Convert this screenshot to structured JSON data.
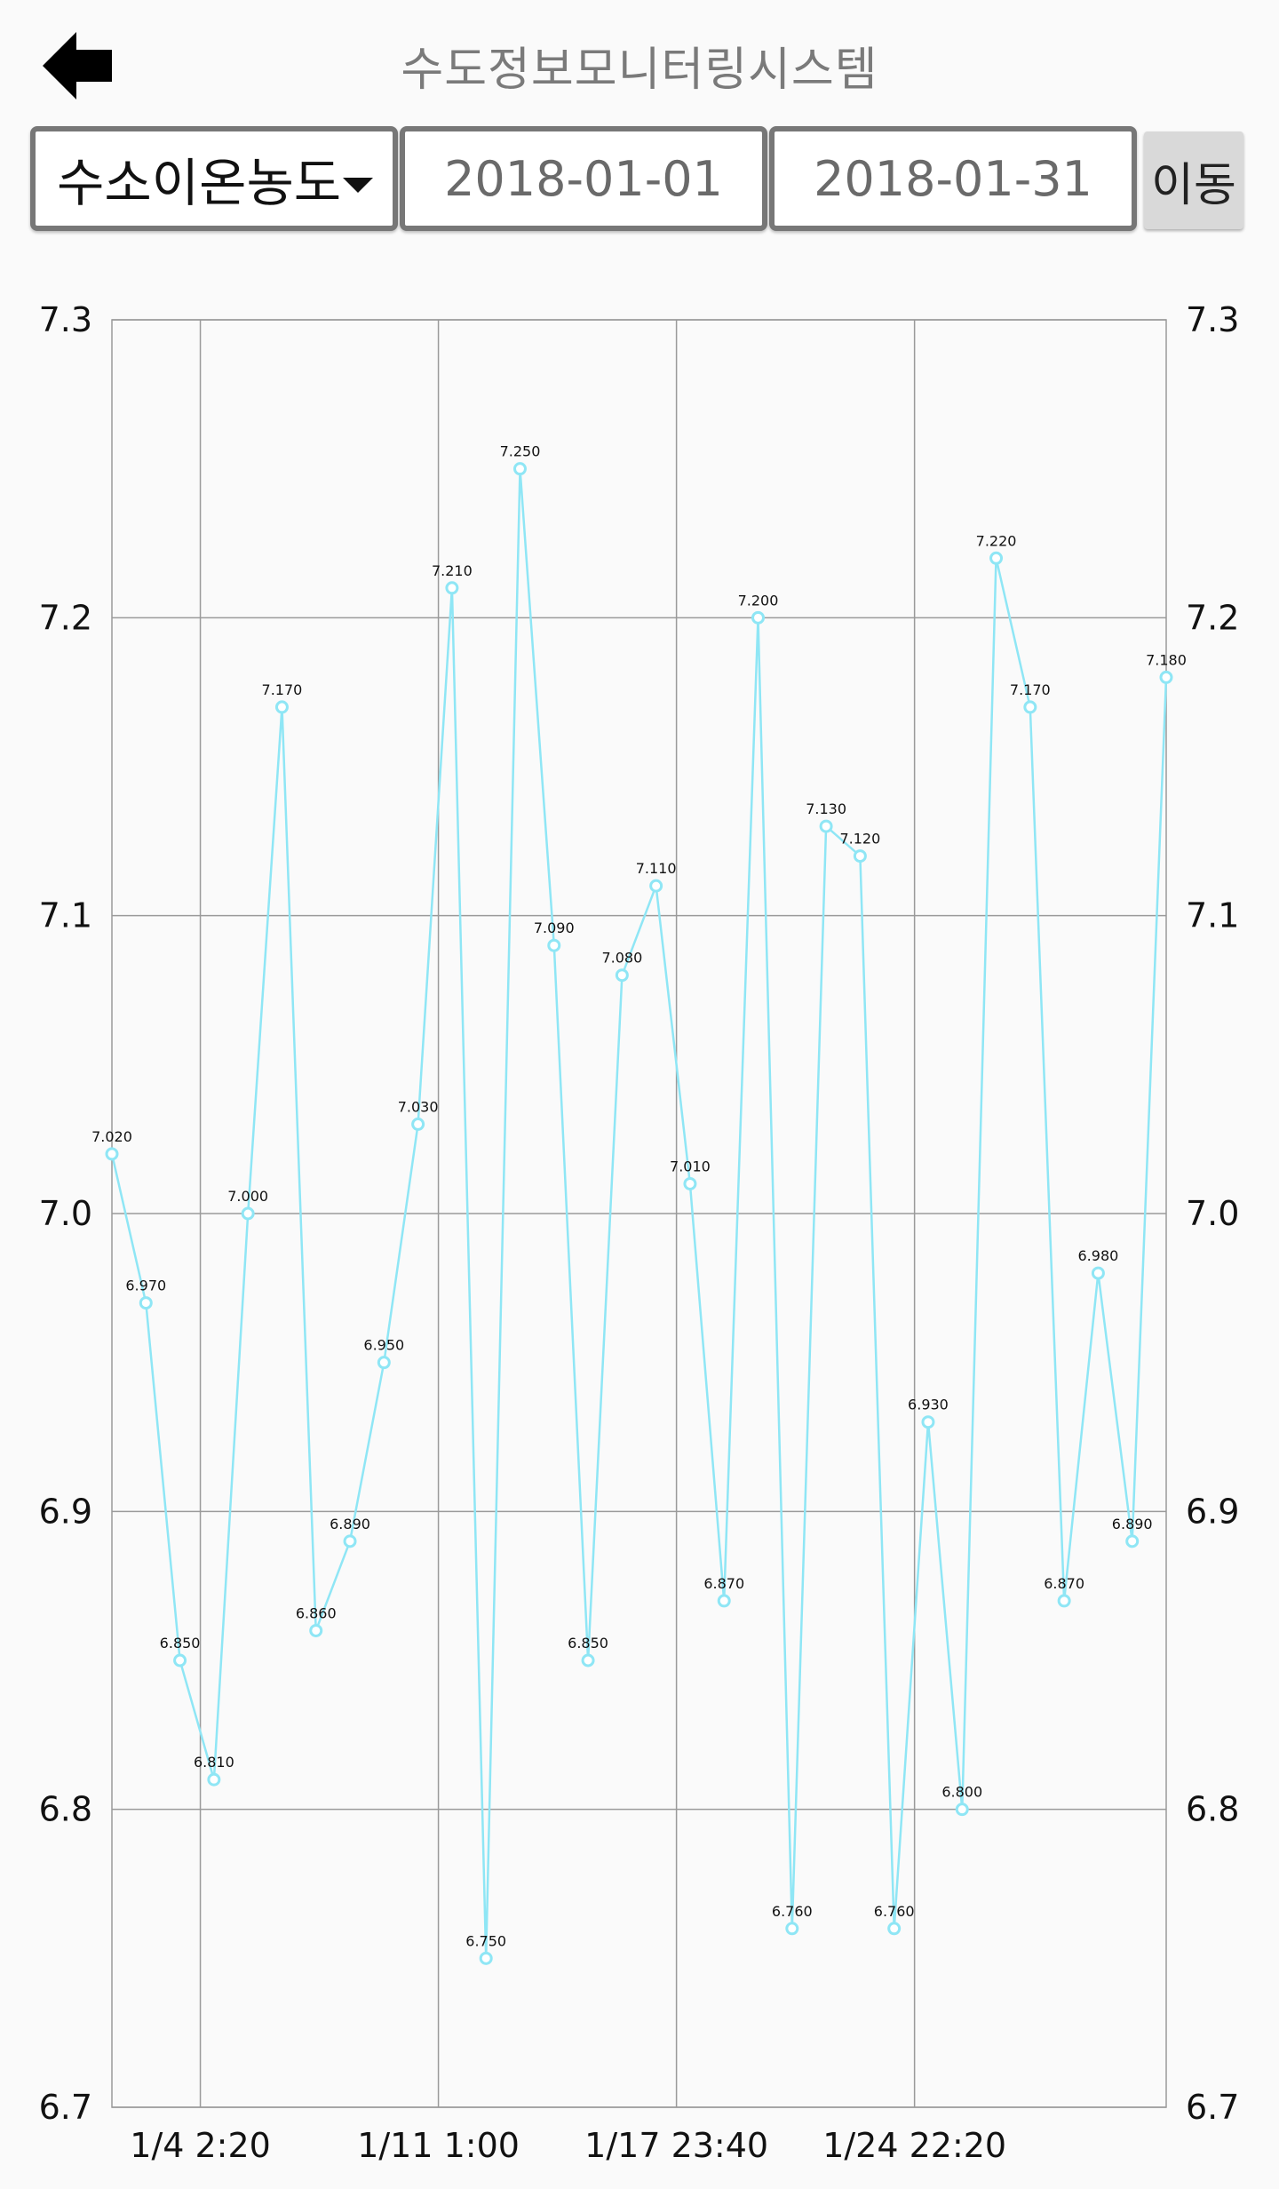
{
  "header": {
    "back_icon": "arrow-left-icon",
    "title": "수도정보모니터링시스템"
  },
  "controls": {
    "metric_selected": "수소이온농도",
    "start_date": "2018-01-01",
    "end_date": "2018-01-31",
    "go_label": "이동"
  },
  "colors": {
    "series_line": "#8fe6f5",
    "grid": "#9a9a9a",
    "background": "#fafafa"
  },
  "chart_data": {
    "type": "line",
    "ylim": [
      6.7,
      7.3
    ],
    "yticks": [
      "6.7",
      "6.8",
      "6.9",
      "7.0",
      "7.1",
      "7.2",
      "7.3"
    ],
    "yticks_right": [
      "6.7",
      "6.8",
      "6.9",
      "7.0",
      "7.1",
      "7.2",
      "7.3"
    ],
    "xtick_labels": [
      "1/4 2:20",
      "1/11 1:00",
      "1/17 23:40",
      "1/24 22:20"
    ],
    "xtick_index": [
      2.6,
      9.6,
      16.6,
      23.6
    ],
    "grid": true,
    "values": [
      7.02,
      6.97,
      6.85,
      6.81,
      7.0,
      7.17,
      6.86,
      6.89,
      6.95,
      7.03,
      7.21,
      6.75,
      7.25,
      7.09,
      6.85,
      7.08,
      7.11,
      7.01,
      6.87,
      7.2,
      6.76,
      7.13,
      7.12,
      6.76,
      6.93,
      6.8,
      7.22,
      7.17,
      6.87,
      6.98,
      6.89,
      7.18
    ],
    "labels": [
      "7.020",
      "6.970",
      "6.850",
      "6.810",
      "7.000",
      "7.170",
      "6.860",
      "6.890",
      "6.950",
      "7.030",
      "7.210",
      "6.750",
      "7.250",
      "7.090",
      "6.850",
      "7.080",
      "7.110",
      "7.010",
      "6.870",
      "7.200",
      "6.760",
      "7.130",
      "7.120",
      "6.760",
      "6.930",
      "6.800",
      "7.220",
      "7.170",
      "6.870",
      "6.980",
      "6.890",
      "7.180"
    ]
  }
}
